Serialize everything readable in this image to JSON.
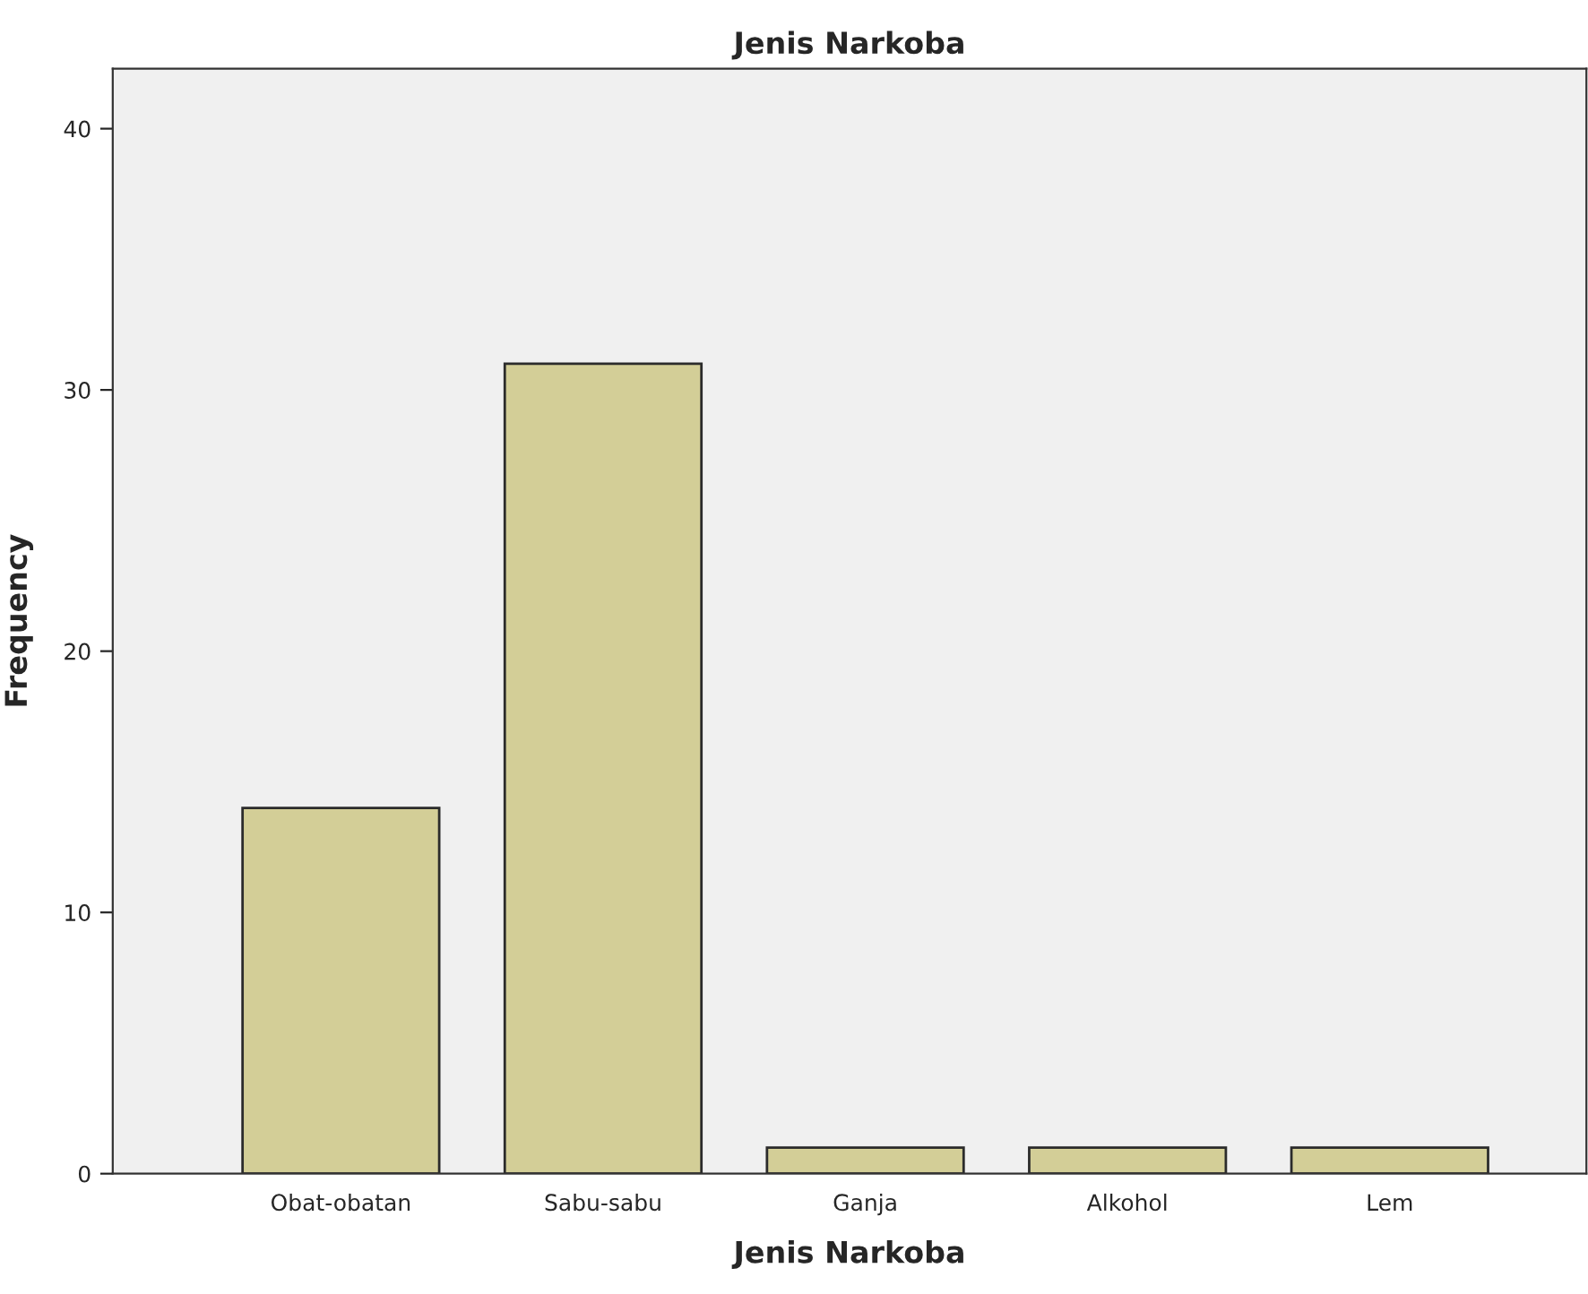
{
  "chart_data": {
    "type": "bar",
    "title": "Jenis Narkoba",
    "xlabel": "Jenis Narkoba",
    "ylabel": "Frequency",
    "categories": [
      "Obat-obatan",
      "Sabu-sabu",
      "Ganja",
      "Alkohol",
      "Lem"
    ],
    "values": [
      14,
      31,
      1,
      1,
      1
    ],
    "color": "#d3ce97",
    "ylim": [
      0,
      42.3
    ],
    "yticks": [
      0,
      10,
      20,
      30,
      40
    ],
    "grid": false,
    "legend": false
  }
}
